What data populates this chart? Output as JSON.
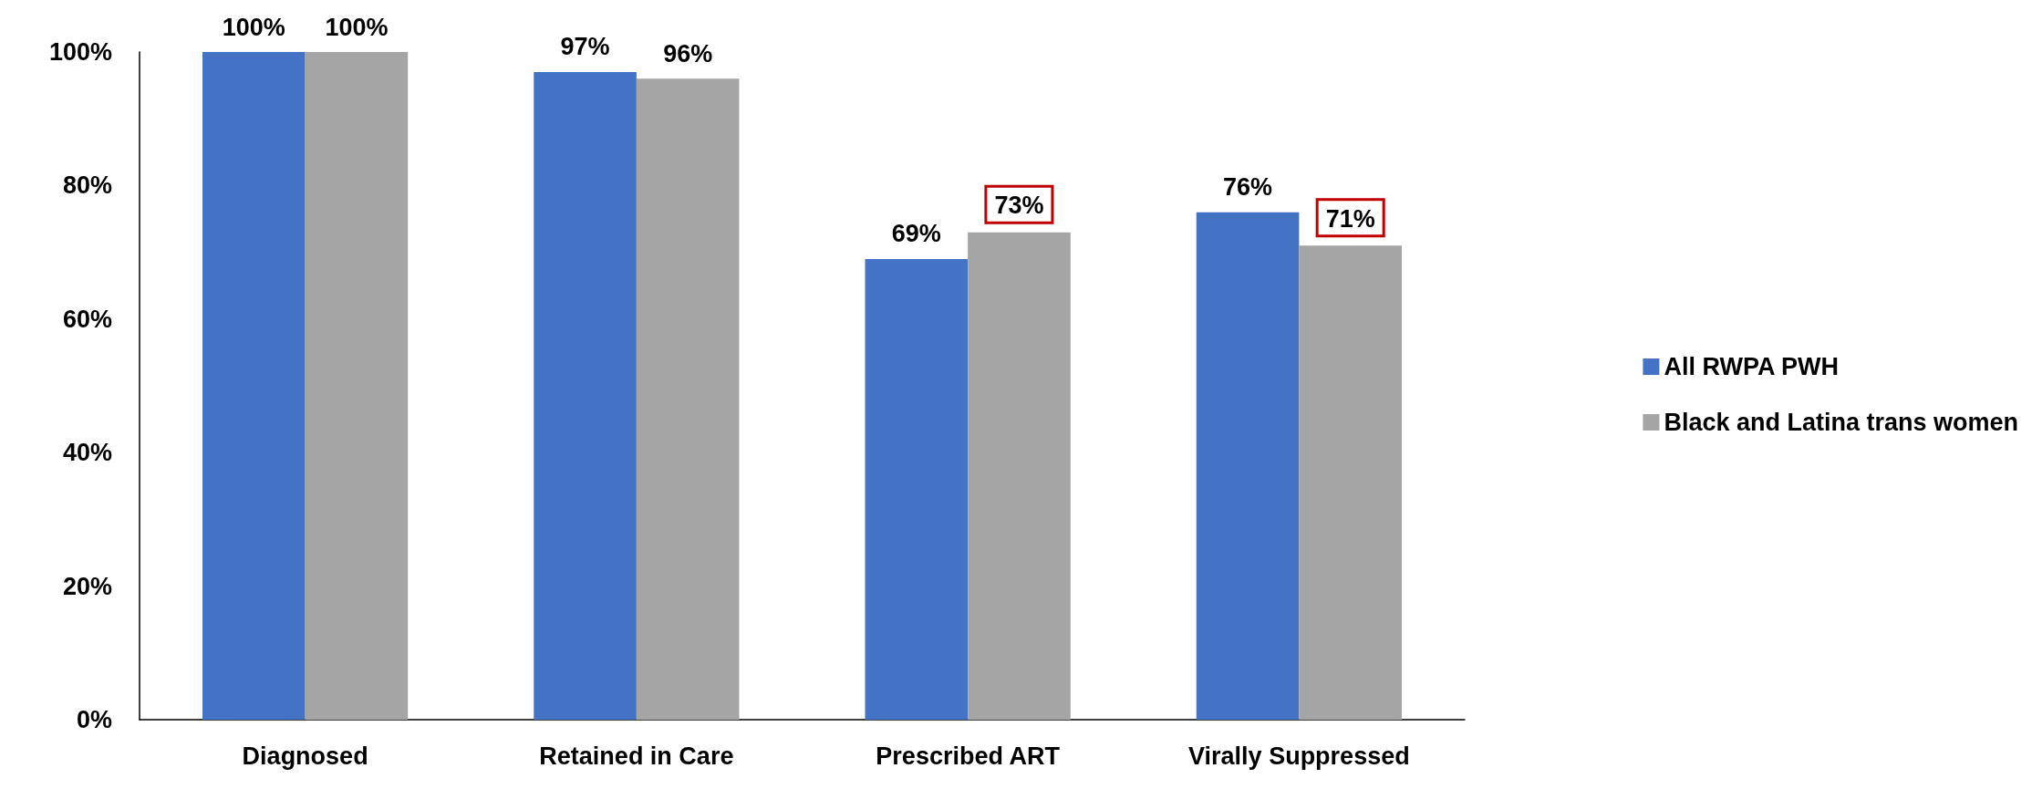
{
  "chart_data": {
    "type": "bar",
    "categories": [
      "Diagnosed",
      "Retained in Care",
      "Prescribed ART",
      "Virally Suppressed"
    ],
    "series": [
      {
        "name": "All RWPA PWH",
        "color": "#4472c4",
        "values": [
          100,
          97,
          69,
          76
        ],
        "value_labels": [
          "100%",
          "97%",
          "69%",
          "76%"
        ]
      },
      {
        "name": "Black and Latina trans women",
        "color": "#a5a5a5",
        "values": [
          100,
          96,
          73,
          71
        ],
        "value_labels": [
          "100%",
          "96%",
          null,
          null
        ]
      }
    ],
    "annotations": [
      {
        "text": "73%",
        "x": "Prescribed ART",
        "y": 73
      },
      {
        "text": "71%",
        "x": "Virally Suppressed",
        "y": 71
      }
    ],
    "ylim": [
      0,
      100
    ],
    "yticks": [
      {
        "value": 0,
        "label": "0%"
      },
      {
        "value": 20,
        "label": "20%"
      },
      {
        "value": 40,
        "label": "40%"
      },
      {
        "value": 60,
        "label": "60%"
      },
      {
        "value": 80,
        "label": "80%"
      },
      {
        "value": 100,
        "label": "100%"
      }
    ],
    "grid": false,
    "legend": "right"
  }
}
